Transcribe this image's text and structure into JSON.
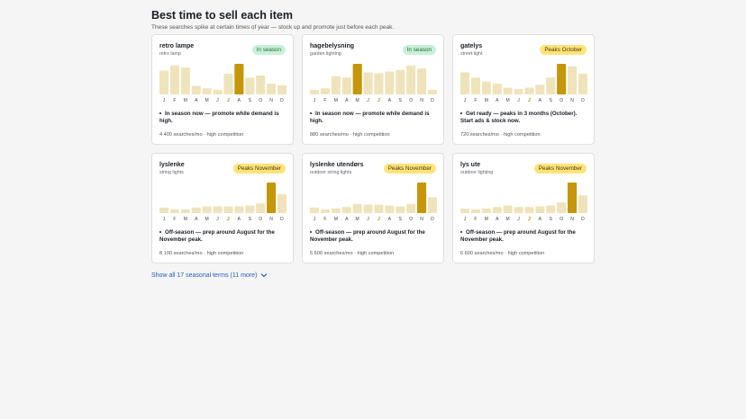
{
  "header": {
    "title": "Best time to sell each item",
    "subtitle": "These searches spike at certain times of year — stock up and promote just before each peak."
  },
  "months": [
    "J",
    "F",
    "M",
    "A",
    "M",
    "J",
    "J",
    "A",
    "S",
    "O",
    "N",
    "D"
  ],
  "current_month_index": 6,
  "colors": {
    "bar": "#efe3bb",
    "peak_bar": "#c5960a",
    "inseason_badge": "#c9f0d7",
    "peak_badge": "#ffe37a",
    "link": "#1f5fbf"
  },
  "cards": [
    {
      "name": "retro lampe",
      "translation": "retro lamp",
      "badge": "In season",
      "badge_kind": "inseason",
      "monthly": [
        0.78,
        0.95,
        0.88,
        0.28,
        0.2,
        0.15,
        0.68,
        1.0,
        0.55,
        0.62,
        0.35,
        0.3
      ],
      "peak_index": 7,
      "note": "In season now — promote while demand is high.",
      "searches": "4 400 searches/mo",
      "competition": "high competition"
    },
    {
      "name": "hagebelysning",
      "translation": "garden lighting",
      "badge": "In season",
      "badge_kind": "inseason",
      "monthly": [
        0.15,
        0.2,
        0.6,
        0.55,
        1.0,
        0.72,
        0.7,
        0.75,
        0.8,
        0.95,
        0.85,
        0.15
      ],
      "peak_index": 4,
      "note": "In season now — promote while demand is high.",
      "searches": "880 searches/mo",
      "competition": "high competition"
    },
    {
      "name": "gatelys",
      "translation": "street light",
      "badge": "Peaks October",
      "badge_kind": "peaks",
      "monthly": [
        0.72,
        0.55,
        0.42,
        0.35,
        0.22,
        0.18,
        0.22,
        0.32,
        0.55,
        1.0,
        0.92,
        0.68
      ],
      "peak_index": 9,
      "note": "Get ready — peaks in 3 months (October). Start ads & stock now.",
      "searches": "720 searches/mo",
      "competition": "high competition"
    },
    {
      "name": "lyslenke",
      "translation": "string lights",
      "badge": "Peaks November",
      "badge_kind": "peaks",
      "monthly": [
        0.18,
        0.12,
        0.12,
        0.18,
        0.22,
        0.22,
        0.22,
        0.22,
        0.25,
        0.32,
        1.0,
        0.62
      ],
      "peak_index": 10,
      "note": "Off-season — prep around August for the November peak.",
      "searches": "8 100 searches/mo",
      "competition": "high competition"
    },
    {
      "name": "lyslenke utendørs",
      "translation": "outdoor string lights",
      "badge": "Peaks November",
      "badge_kind": "peaks",
      "monthly": [
        0.18,
        0.12,
        0.15,
        0.2,
        0.3,
        0.28,
        0.28,
        0.25,
        0.22,
        0.3,
        1.0,
        0.52
      ],
      "peak_index": 10,
      "note": "Off-season — prep around August for the November peak.",
      "searches": "6 600 searches/mo",
      "competition": "high competition"
    },
    {
      "name": "lys ute",
      "translation": "outdoor lighting",
      "badge": "Peaks November",
      "badge_kind": "peaks",
      "monthly": [
        0.15,
        0.12,
        0.15,
        0.2,
        0.25,
        0.2,
        0.2,
        0.22,
        0.25,
        0.35,
        1.0,
        0.58
      ],
      "peak_index": 10,
      "note": "Off-season — prep around August for the November peak.",
      "searches": "6 600 searches/mo",
      "competition": "high competition"
    }
  ],
  "footer": {
    "show_all_label": "Show all 17 seasonal terms (11 more)"
  }
}
